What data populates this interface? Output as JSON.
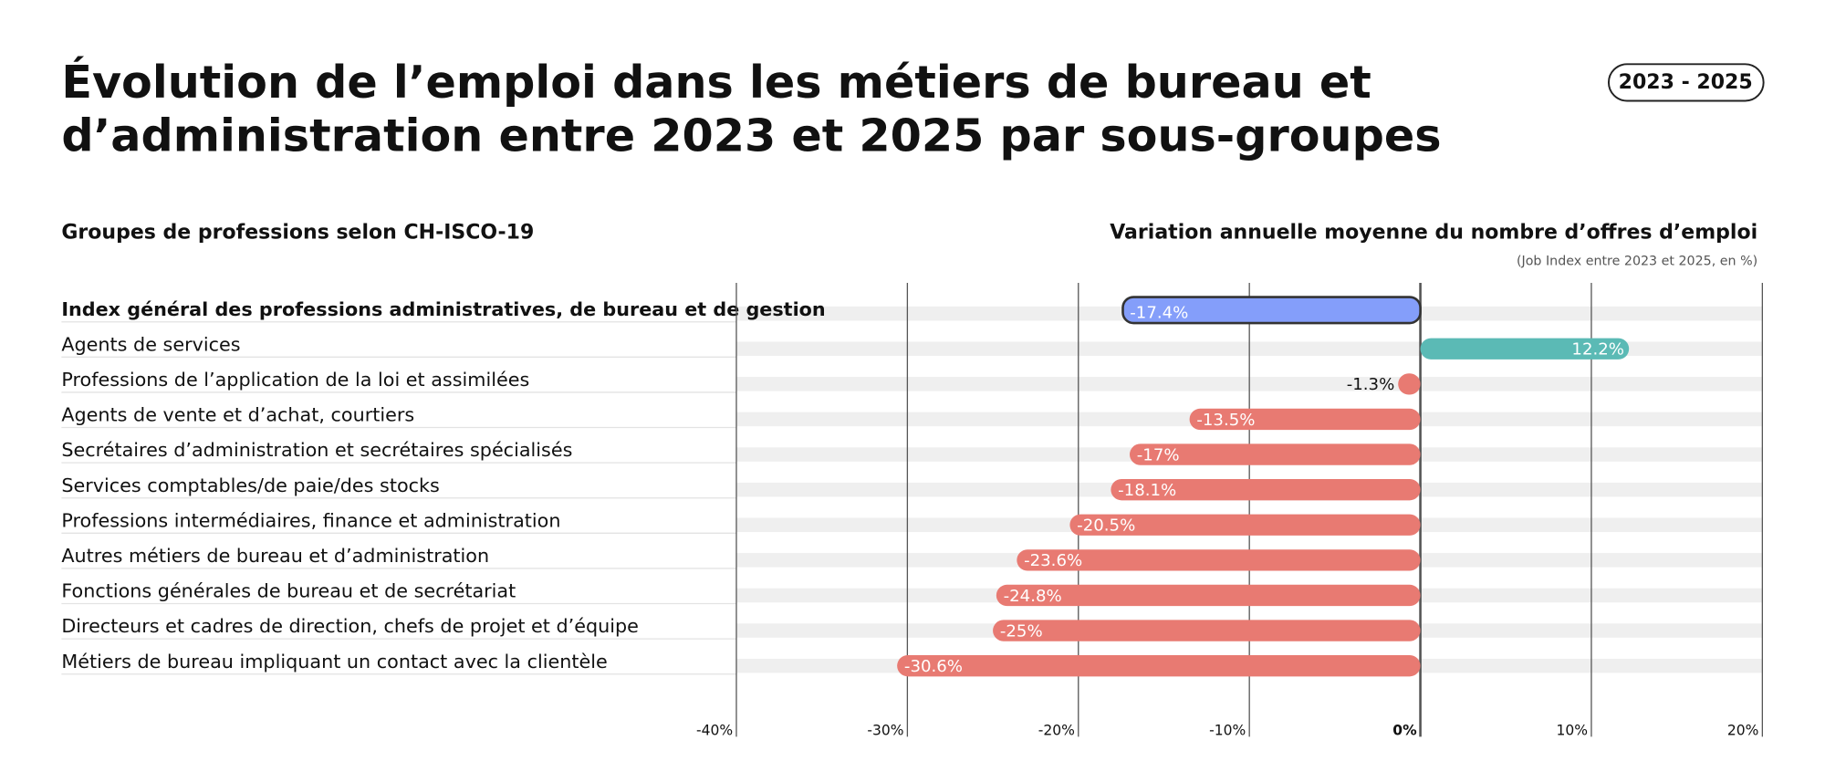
{
  "chart_data": {
    "type": "bar",
    "title": [
      "Évolution de l’emploi dans les métiers de bureau et",
      "d’administration entre 2023 et 2025 par sous-groupes"
    ],
    "badge": "2023 - 2025",
    "category_header": "Groupes de professions selon CH-ISCO-19",
    "value_header": "Variation annuelle moyenne du nombre d’offres d’emploi",
    "value_note": "(Job Index entre 2023 et 2025, en %)",
    "categories": [
      "Index général des professions administratives, de bureau et de gestion",
      "Agents de services",
      "Professions de l’application de la loi et assimilées",
      "Agents de vente et d’achat, courtiers",
      "Secrétaires d’administration et secrétaires spécialisés",
      "Services comptables/de paie/des stocks",
      "Professions intermédiaires, finance et administration",
      "Autres métiers de bureau et d’administration",
      "Fonctions générales de bureau et de secrétariat",
      "Directeurs et cadres de direction, chefs de projet et d’équipe",
      "Métiers de bureau impliquant un contact avec la clientèle"
    ],
    "values": [
      -17.4,
      12.2,
      -1.3,
      -13.5,
      -17,
      -18.1,
      -20.5,
      -23.6,
      -24.8,
      -25,
      -30.6
    ],
    "value_labels": [
      "-17.4%",
      "12.2%",
      "-1.3%",
      "-13.5%",
      "-17%",
      "-18.1%",
      "-20.5%",
      "-23.6%",
      "-24.8%",
      "-25%",
      "-30.6%"
    ],
    "colors": [
      "#849efa",
      "#5bbab5",
      "#e87a72",
      "#e87a72",
      "#e87a72",
      "#e87a72",
      "#e87a72",
      "#e87a72",
      "#e87a72",
      "#e87a72",
      "#e87a72"
    ],
    "xlim": [
      -40,
      20
    ],
    "xticks": [
      {
        "value": -40,
        "label": "-40%"
      },
      {
        "value": -30,
        "label": "-30%"
      },
      {
        "value": -20,
        "label": "-20%"
      },
      {
        "value": -10,
        "label": "-10%"
      },
      {
        "value": 0,
        "label": "0%"
      },
      {
        "value": 10,
        "label": "10%"
      },
      {
        "value": 20,
        "label": "20%"
      }
    ],
    "grid": true
  }
}
